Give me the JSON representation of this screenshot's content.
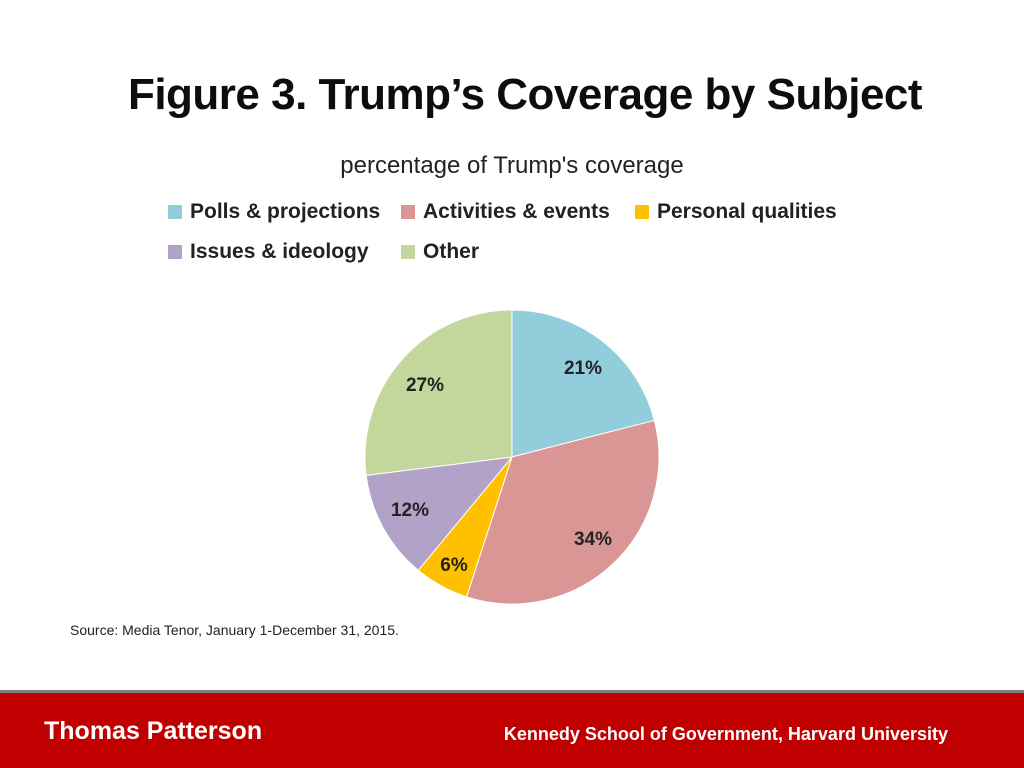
{
  "slide": {
    "title": "Figure 3. Trump’s Coverage by Subject",
    "source": "Source: Media Tenor, January 1-December 31, 2015."
  },
  "footer": {
    "author": "Thomas Patterson",
    "affiliation": "Kennedy School of Government, Harvard University",
    "background_color": "#c00000"
  },
  "chart_data": {
    "type": "pie",
    "title": "percentage of Trump's coverage",
    "legend_position": "top",
    "slices": [
      {
        "label": "Polls  & projections",
        "value": 21,
        "display": "21%",
        "color": "#92cddc"
      },
      {
        "label": "Activities & events",
        "value": 34,
        "display": "34%",
        "color": "#d99694"
      },
      {
        "label": "Personal qualities",
        "value": 6,
        "display": "6%",
        "color": "#ffc000"
      },
      {
        "label": "Issues & ideology",
        "value": 12,
        "display": "12%",
        "color": "#b3a2c7"
      },
      {
        "label": "Other",
        "value": 27,
        "display": "27%",
        "color": "#c3d69b"
      }
    ]
  }
}
